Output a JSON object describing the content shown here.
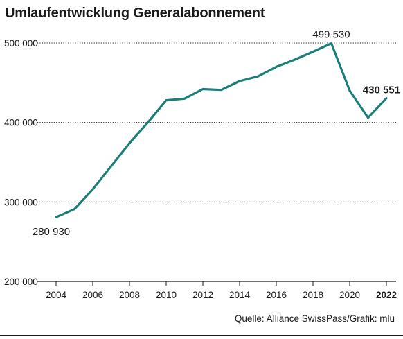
{
  "header": {
    "title": "Umlaufentwicklung Generalabonnement"
  },
  "footer": {
    "source": "Quelle: Alliance SwissPass/Grafik: mlu"
  },
  "colors": {
    "line": "#1b7f78",
    "text": "#1a1a1a"
  },
  "chart_data": {
    "type": "line",
    "title": "Umlaufentwicklung Generalabonnement",
    "xlabel": "",
    "ylabel": "",
    "grid": "horizontal dotted",
    "xlim": [
      2004,
      2022
    ],
    "ylim": [
      200000,
      500000
    ],
    "y_ticks": [
      {
        "value": 500000,
        "label": "500 000"
      },
      {
        "value": 400000,
        "label": "400 000"
      },
      {
        "value": 300000,
        "label": "300 000"
      },
      {
        "value": 200000,
        "label": "200 000"
      }
    ],
    "x_ticks": [
      {
        "value": 2004,
        "label": "2004",
        "bold": false
      },
      {
        "value": 2006,
        "label": "2006",
        "bold": false
      },
      {
        "value": 2008,
        "label": "2008",
        "bold": false
      },
      {
        "value": 2010,
        "label": "2010",
        "bold": false
      },
      {
        "value": 2012,
        "label": "2012",
        "bold": false
      },
      {
        "value": 2014,
        "label": "2014",
        "bold": false
      },
      {
        "value": 2016,
        "label": "2016",
        "bold": false
      },
      {
        "value": 2018,
        "label": "2018",
        "bold": false
      },
      {
        "value": 2020,
        "label": "2020",
        "bold": false
      },
      {
        "value": 2022,
        "label": "2022",
        "bold": true
      }
    ],
    "x": [
      2004,
      2005,
      2006,
      2007,
      2008,
      2009,
      2010,
      2011,
      2012,
      2013,
      2014,
      2015,
      2016,
      2017,
      2018,
      2019,
      2020,
      2021,
      2022
    ],
    "series": [
      {
        "values": [
          280930,
          291000,
          316000,
          345000,
          374000,
          400000,
          428000,
          430000,
          442000,
          441000,
          452000,
          458000,
          470000,
          479000,
          489000,
          499530,
          440000,
          406000,
          430551
        ]
      }
    ],
    "annotations": [
      {
        "text": "280 930",
        "x": 2004,
        "y": 280930,
        "bold": false
      },
      {
        "text": "499 530",
        "x": 2019,
        "y": 499530,
        "bold": false
      },
      {
        "text": "430 551",
        "x": 2022,
        "y": 430551,
        "bold": true
      }
    ]
  }
}
